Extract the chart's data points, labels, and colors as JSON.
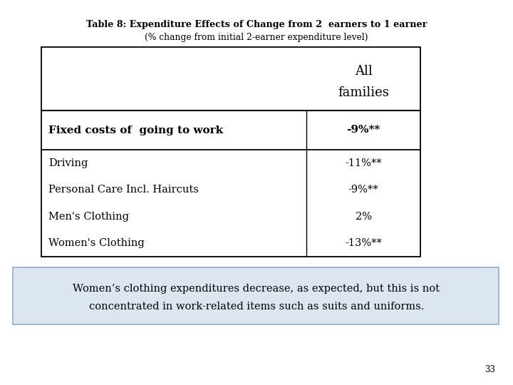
{
  "title_line1": "Table 8: Expenditure Effects of Change from 2  earners to 1 earner",
  "title_line2": "(% change from initial 2-earner expenditure level)",
  "rows": [
    {
      "label": "Fixed costs of  going to work",
      "value": "-9%**",
      "bold": true
    },
    {
      "label": "Driving",
      "value": "-11%**",
      "bold": false
    },
    {
      "label": "Personal Care Incl. Haircuts",
      "value": "-9%**",
      "bold": false
    },
    {
      "label": "Men's Clothing",
      "value": "2%",
      "bold": false
    },
    {
      "label": "Women's Clothing",
      "value": "-13%**",
      "bold": false
    }
  ],
  "note_line1": "Women’s clothing expenditures decrease, as expected, but this is not",
  "note_line2": "concentrated in work-related items such as suits and uniforms.",
  "page_number": "33",
  "bg_color": "#ffffff",
  "note_bg_color": "#dce6f1",
  "note_border_color": "#9ab3cc"
}
